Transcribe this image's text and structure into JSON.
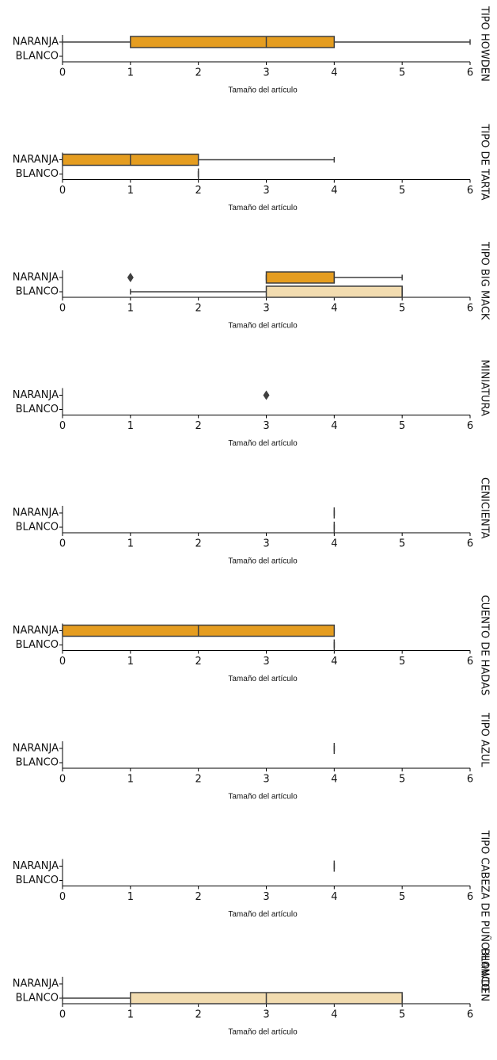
{
  "chart_data": [
    {
      "type": "box",
      "title": "TIPO HOWDEN",
      "xlabel": "Tamaño del artículo",
      "categories": [
        "NARANJA",
        "BLANCO"
      ],
      "colors": [
        "#e59d20",
        "#f2dcb0"
      ],
      "boxes": [
        {
          "min": 0,
          "q1": 1,
          "median": 3,
          "q3": 4,
          "max": 6,
          "outliers": []
        },
        null
      ],
      "xlim": [
        0,
        6
      ],
      "xticks": [
        0,
        1,
        2,
        3,
        4,
        5,
        6
      ]
    },
    {
      "type": "box",
      "title": "TIPO DE TARTA",
      "xlabel": "Tamaño del artículo",
      "categories": [
        "NARANJA",
        "BLANCO"
      ],
      "colors": [
        "#e59d20",
        "#f2dcb0"
      ],
      "boxes": [
        {
          "min": 0,
          "q1": 0,
          "median": 1,
          "q3": 2,
          "max": 4,
          "outliers": []
        },
        {
          "min": 2,
          "q1": 2,
          "median": 2,
          "q3": 2,
          "max": 2,
          "outliers": []
        }
      ],
      "xlim": [
        0,
        6
      ],
      "xticks": [
        0,
        1,
        2,
        3,
        4,
        5,
        6
      ]
    },
    {
      "type": "box",
      "title": "TIPO BIG MACK",
      "xlabel": "Tamaño del artículo",
      "categories": [
        "NARANJA",
        "BLANCO"
      ],
      "colors": [
        "#e59d20",
        "#f2dcb0"
      ],
      "boxes": [
        {
          "min": 3,
          "q1": 3,
          "median": 4,
          "q3": 4,
          "max": 5,
          "outliers": [
            1
          ]
        },
        {
          "min": 1,
          "q1": 3,
          "median": 5,
          "q3": 5,
          "max": 5,
          "outliers": []
        }
      ],
      "xlim": [
        0,
        6
      ],
      "xticks": [
        0,
        1,
        2,
        3,
        4,
        5,
        6
      ]
    },
    {
      "type": "box",
      "title": "MINIATURA",
      "xlabel": "Tamaño del artículo",
      "categories": [
        "NARANJA",
        "BLANCO"
      ],
      "colors": [
        "#e59d20",
        "#f2dcb0"
      ],
      "boxes": [
        {
          "min": null,
          "q1": null,
          "median": null,
          "q3": null,
          "max": null,
          "outliers": [
            3
          ]
        },
        null
      ],
      "xlim": [
        0,
        6
      ],
      "xticks": [
        0,
        1,
        2,
        3,
        4,
        5,
        6
      ]
    },
    {
      "type": "box",
      "title": "CENICIENTA",
      "xlabel": "Tamaño del artículo",
      "categories": [
        "NARANJA",
        "BLANCO"
      ],
      "colors": [
        "#e59d20",
        "#f2dcb0"
      ],
      "boxes": [
        {
          "min": 4,
          "q1": 4,
          "median": 4,
          "q3": 4,
          "max": 4,
          "outliers": []
        },
        {
          "min": 4,
          "q1": 4,
          "median": 4,
          "q3": 4,
          "max": 4,
          "outliers": []
        }
      ],
      "xlim": [
        0,
        6
      ],
      "xticks": [
        0,
        1,
        2,
        3,
        4,
        5,
        6
      ]
    },
    {
      "type": "box",
      "title": "CUENTO DE HADAS",
      "xlabel": "Tamaño del artículo",
      "categories": [
        "NARANJA",
        "BLANCO"
      ],
      "colors": [
        "#e59d20",
        "#f2dcb0"
      ],
      "boxes": [
        {
          "min": 0,
          "q1": 0,
          "median": 2,
          "q3": 4,
          "max": 4,
          "outliers": []
        },
        {
          "min": 4,
          "q1": 4,
          "median": 4,
          "q3": 4,
          "max": 4,
          "outliers": []
        }
      ],
      "xlim": [
        0,
        6
      ],
      "xticks": [
        0,
        1,
        2,
        3,
        4,
        5,
        6
      ]
    },
    {
      "type": "box",
      "title": "TIPO AZUL",
      "xlabel": "Tamaño del artículo",
      "categories": [
        "NARANJA",
        "BLANCO"
      ],
      "colors": [
        "#e59d20",
        "#f2dcb0"
      ],
      "boxes": [
        {
          "min": 4,
          "q1": 4,
          "median": 4,
          "q3": 4,
          "max": 4,
          "outliers": []
        },
        null
      ],
      "xlim": [
        0,
        6
      ],
      "xticks": [
        0,
        1,
        2,
        3,
        4,
        5,
        6
      ]
    },
    {
      "type": "box",
      "title": "TIPO CABEZA DE PUÑO HOWDEN",
      "xlabel": "Tamaño del artículo",
      "categories": [
        "NARANJA",
        "BLANCO"
      ],
      "colors": [
        "#e59d20",
        "#f2dcb0"
      ],
      "boxes": [
        {
          "min": 4,
          "q1": 4,
          "median": 4,
          "q3": 4,
          "max": 4,
          "outliers": []
        },
        null
      ],
      "xlim": [
        0,
        6
      ],
      "xticks": [
        0,
        1,
        2,
        3,
        4,
        5,
        6
      ]
    },
    {
      "type": "box",
      "title": "BLANCO",
      "xlabel": "Tamaño del artículo",
      "categories": [
        "NARANJA",
        "BLANCO"
      ],
      "colors": [
        "#e59d20",
        "#f2dcb0"
      ],
      "boxes": [
        null,
        {
          "min": 0,
          "q1": 1,
          "median": 3,
          "q3": 5,
          "max": 5,
          "outliers": []
        }
      ],
      "xlim": [
        0,
        6
      ],
      "xticks": [
        0,
        1,
        2,
        3,
        4,
        5,
        6
      ]
    }
  ]
}
